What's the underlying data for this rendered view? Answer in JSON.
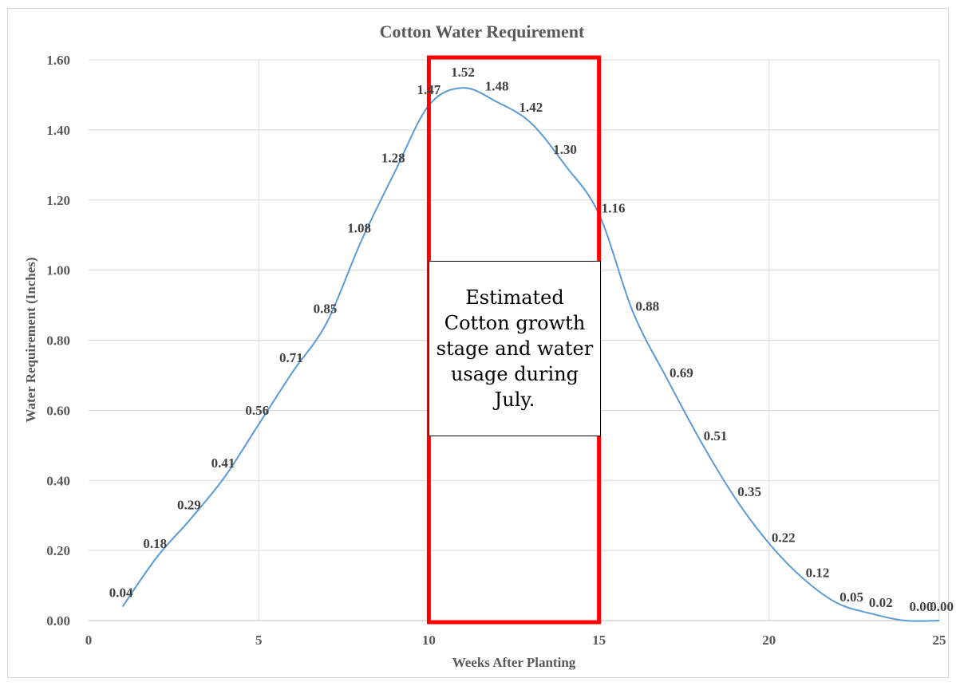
{
  "chart_data": {
    "type": "line",
    "title": "Cotton Water Requirement",
    "xlabel": "Weeks After Planting",
    "ylabel": "Water Requirement (Inches)",
    "xlim": [
      0,
      25
    ],
    "ylim": [
      0,
      1.6
    ],
    "x_ticks": [
      "0",
      "5",
      "10",
      "15",
      "20",
      "25"
    ],
    "y_ticks": [
      "0.00",
      "0.20",
      "0.40",
      "0.60",
      "0.80",
      "1.00",
      "1.20",
      "1.40",
      "1.60"
    ],
    "grid": "horizontal and vertical",
    "smooth": true,
    "series": [
      {
        "x": [
          1,
          2,
          3,
          4,
          5,
          6,
          7,
          8,
          9,
          10,
          11,
          12,
          13,
          14,
          15,
          16,
          17,
          18,
          19,
          20,
          21,
          22,
          23,
          24,
          25
        ],
        "values": [
          0.04,
          0.18,
          0.29,
          0.41,
          0.56,
          0.71,
          0.85,
          1.08,
          1.28,
          1.47,
          1.52,
          1.48,
          1.42,
          1.3,
          1.16,
          0.88,
          0.69,
          0.51,
          0.35,
          0.22,
          0.12,
          0.05,
          0.02,
          0.0,
          0.0
        ],
        "labels": [
          "0.04",
          "0.18",
          "0.29",
          "0.41",
          "0.56",
          "0.71",
          "0.85",
          "1.08",
          "1.28",
          "1.47",
          "1.52",
          "1.48",
          "1.42",
          "1.30",
          "1.16",
          "0.88",
          "0.69",
          "0.51",
          "0.35",
          "0.22",
          "0.12",
          "0.05",
          "0.02",
          "0.00",
          "0.00"
        ],
        "color": "#5b9bd5"
      }
    ],
    "highlight_range": {
      "x": [
        10,
        15
      ],
      "color": "#ff0000"
    },
    "annotation": "Estimated Cotton growth stage and water usage during July."
  }
}
